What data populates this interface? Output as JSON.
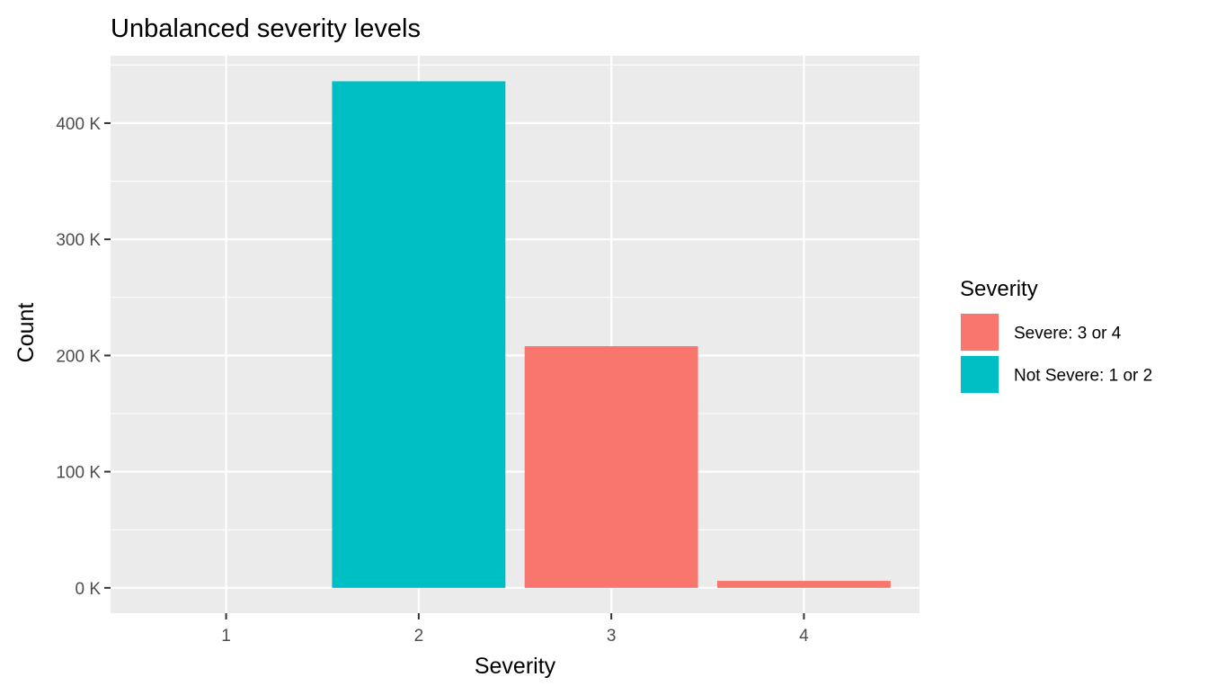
{
  "chart_data": {
    "type": "bar",
    "title": "Unbalanced severity levels",
    "xlabel": "Severity",
    "ylabel": "Count",
    "categories": [
      "1",
      "2",
      "3",
      "4"
    ],
    "values": [
      0,
      436000,
      208000,
      6000
    ],
    "bar_groups": [
      "Not Severe: 1 or 2",
      "Not Severe: 1 or 2",
      "Severe: 3 or 4",
      "Severe: 3 or 4"
    ],
    "yticks": [
      0,
      100000,
      200000,
      300000,
      400000
    ],
    "ytick_labels": [
      "0 K",
      "100 K",
      "200 K",
      "300 K",
      "400 K"
    ],
    "ylim": [
      -21800,
      458000
    ],
    "legend": {
      "title": "Severity",
      "position": "right",
      "entries": [
        {
          "label": "Severe: 3 or 4",
          "color": "#F8766D"
        },
        {
          "label": "Not Severe: 1 or 2",
          "color": "#00BFC4"
        }
      ]
    },
    "colors": {
      "panel_background": "#EBEBEB",
      "grid": "#FFFFFF",
      "Severe: 3 or 4": "#F8766D",
      "Not Severe: 1 or 2": "#00BFC4"
    },
    "grid": true
  }
}
